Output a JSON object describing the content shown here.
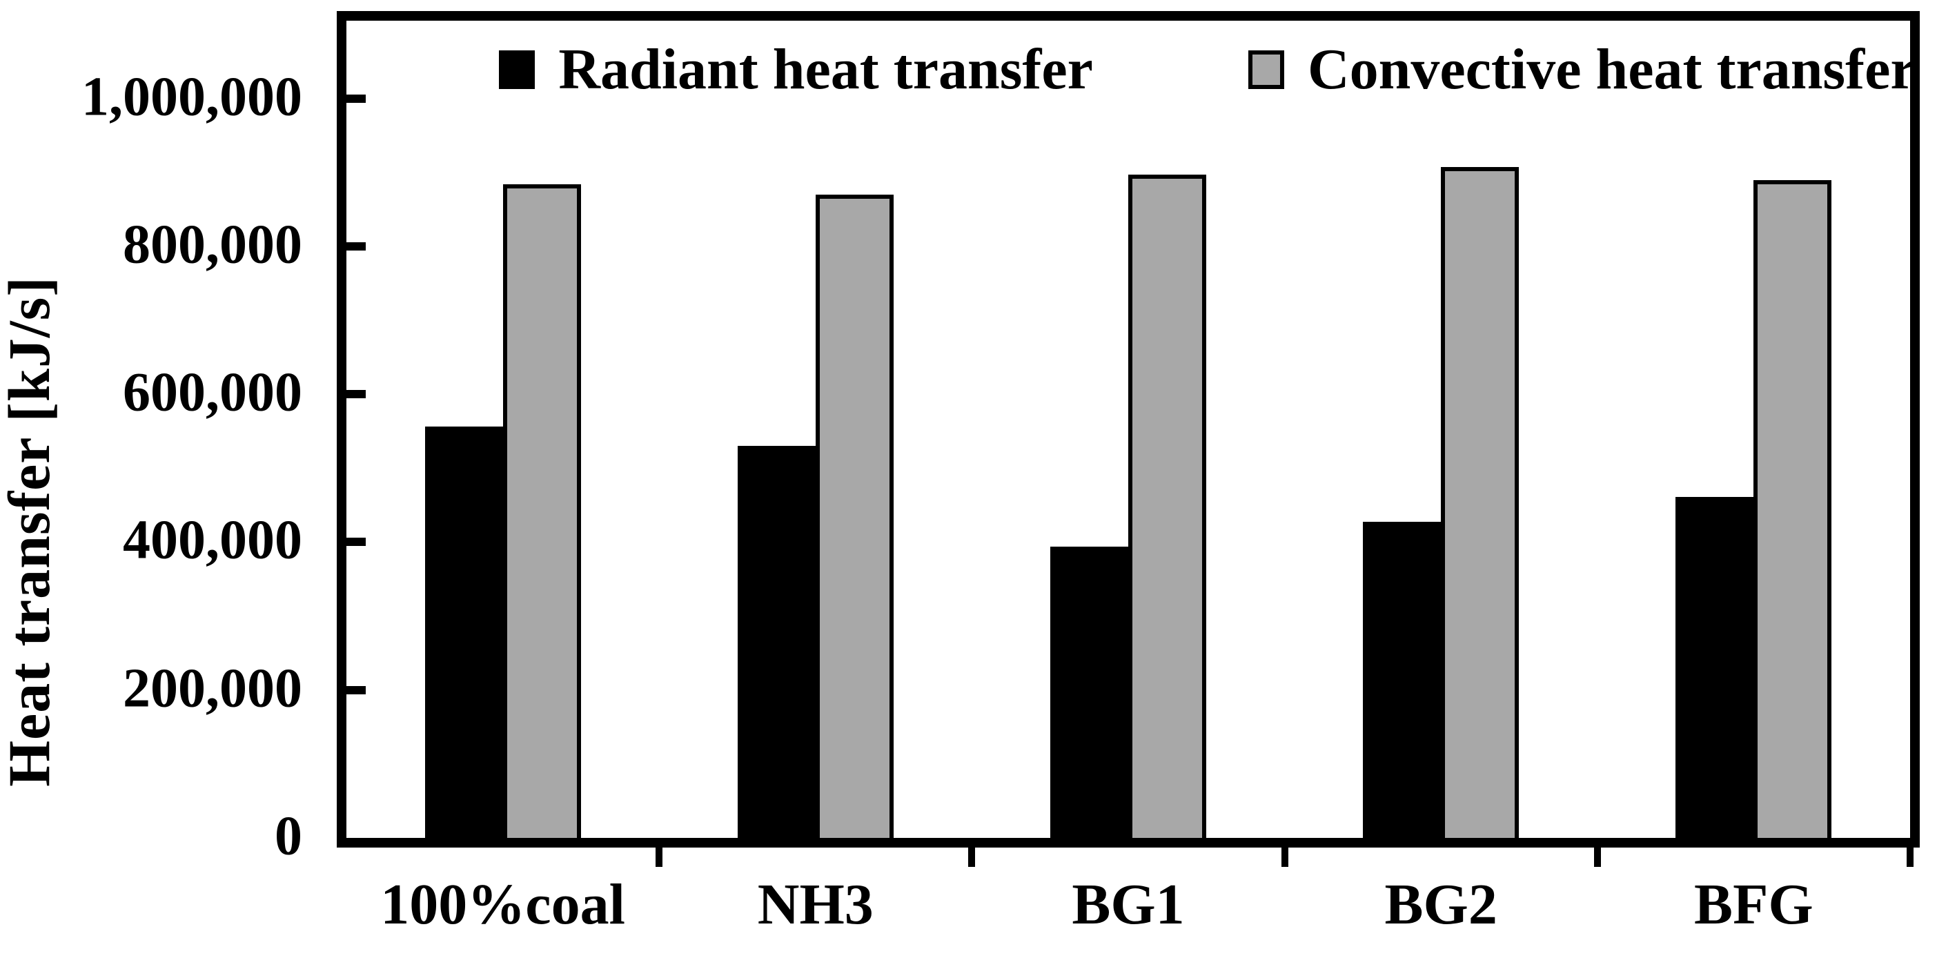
{
  "chart_data": {
    "type": "bar",
    "title": "",
    "xlabel": "",
    "ylabel": "Heat transfer [kJ/s]",
    "categories": [
      "100%coal",
      "NH3",
      "BG1",
      "BG2",
      "BFG"
    ],
    "series": [
      {
        "name": "Radiant heat transfer",
        "color": "#000000",
        "values": [
          556000,
          530000,
          394000,
          427000,
          461000
        ]
      },
      {
        "name": "Convective heat transfer",
        "color": "#a8a8a8",
        "values": [
          884000,
          870000,
          897000,
          907000,
          889000
        ]
      }
    ],
    "yticks": [
      {
        "value": 0,
        "label": "0"
      },
      {
        "value": 200000,
        "label": "200,000"
      },
      {
        "value": 400000,
        "label": "400,000"
      },
      {
        "value": 600000,
        "label": "600,000"
      },
      {
        "value": 800000,
        "label": "800,000"
      },
      {
        "value": 1000000,
        "label": "1,000,000"
      }
    ],
    "ylim": [
      0,
      1105000
    ],
    "grid": false,
    "legend_position": "top-inside",
    "colors": {
      "background": "#ffffff",
      "axis": "#000000",
      "bar_outline": "#000000"
    }
  }
}
